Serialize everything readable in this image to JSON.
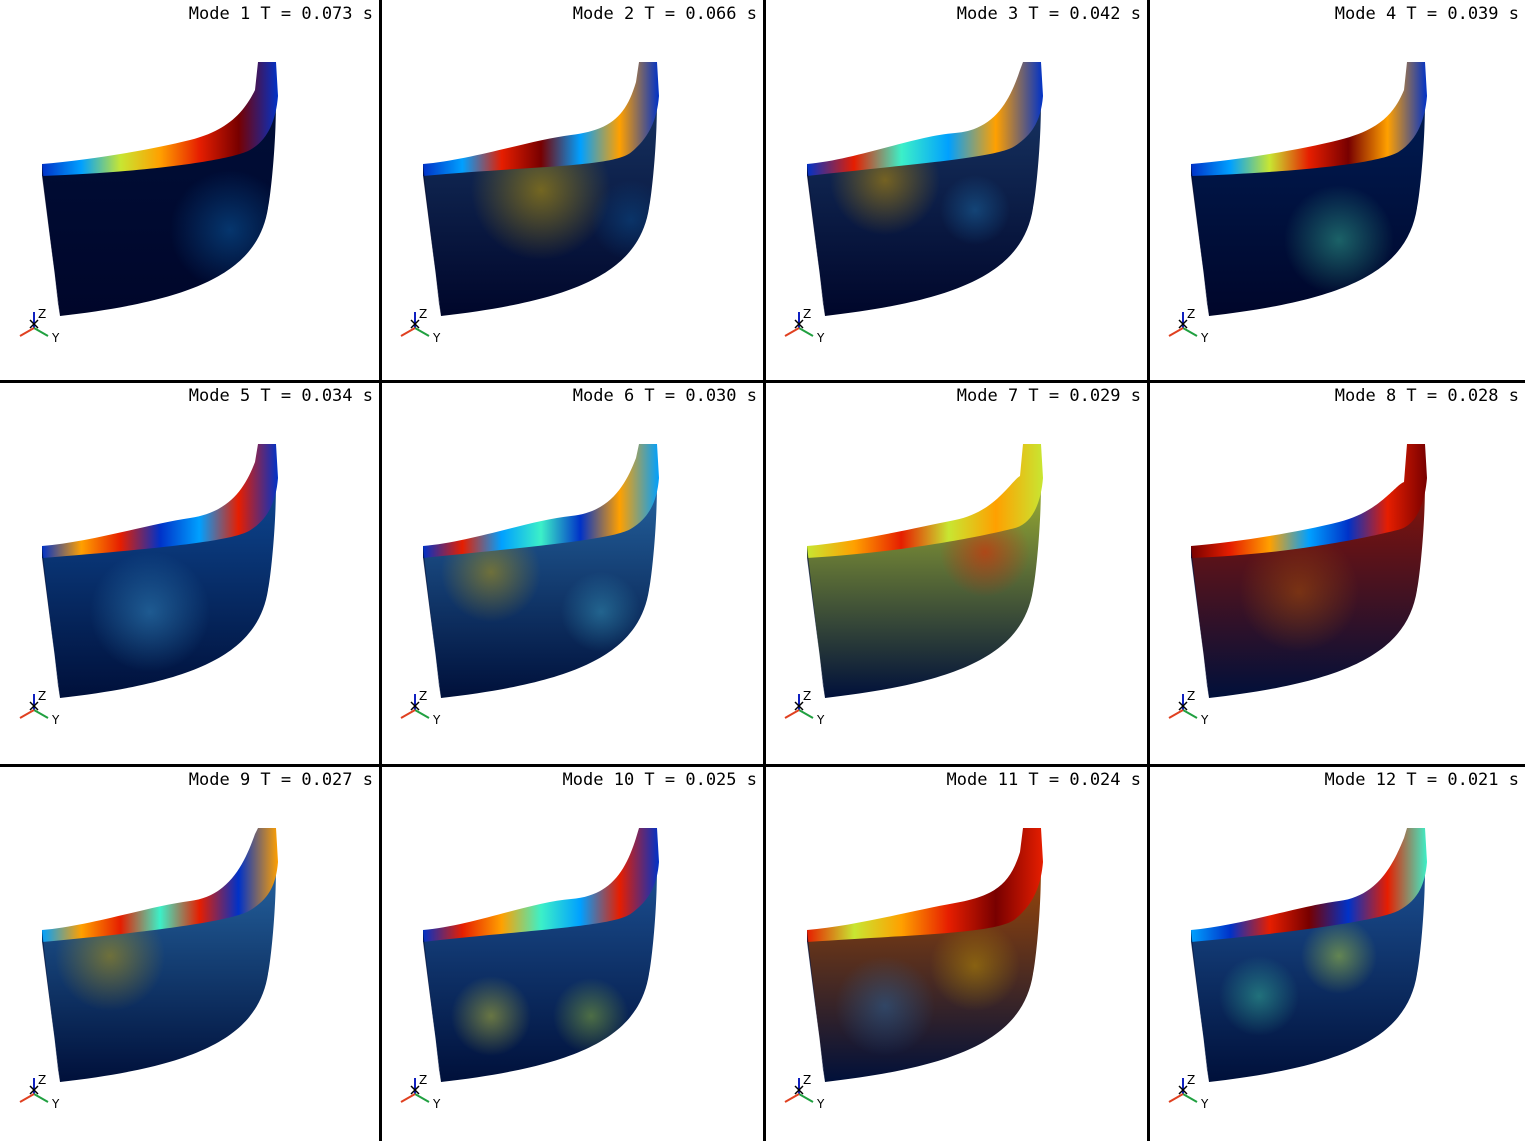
{
  "figure": {
    "layout": {
      "rows": 3,
      "cols": 4
    },
    "axis_labels": {
      "z": "Z",
      "y": "Y"
    },
    "colormap": [
      "#00004a",
      "#0032c8",
      "#00a0ff",
      "#3cf0c8",
      "#c8e632",
      "#ffa000",
      "#e61e00",
      "#780000"
    ],
    "panels": [
      {
        "title": "Mode 1 T = 0.073 s"
      },
      {
        "title": "Mode 2 T = 0.066 s"
      },
      {
        "title": "Mode 3 T = 0.042 s"
      },
      {
        "title": "Mode 4 T = 0.039 s"
      },
      {
        "title": "Mode 5 T = 0.034 s"
      },
      {
        "title": "Mode 6 T = 0.030 s"
      },
      {
        "title": "Mode 7 T = 0.029 s"
      },
      {
        "title": "Mode 8 T = 0.028 s"
      },
      {
        "title": "Mode 9 T = 0.027 s"
      },
      {
        "title": "Mode 10 T = 0.025 s"
      },
      {
        "title": "Mode 11 T = 0.024 s"
      },
      {
        "title": "Mode 12 T = 0.021 s"
      }
    ]
  }
}
